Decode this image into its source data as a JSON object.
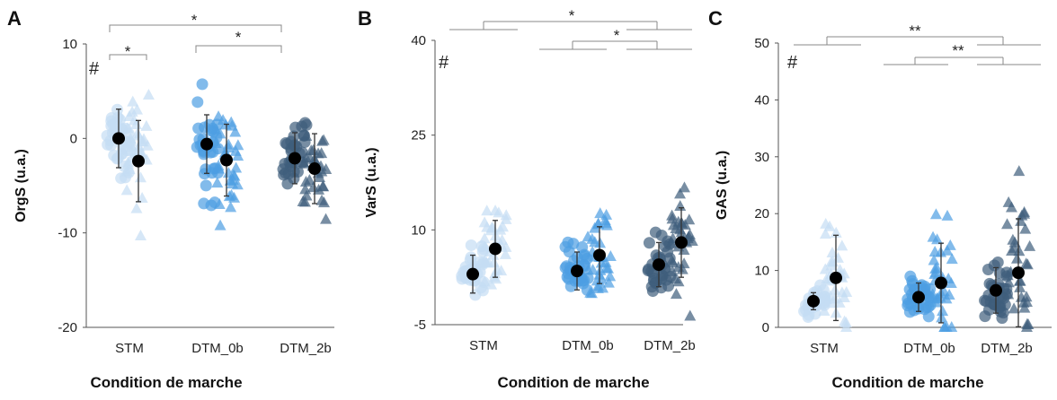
{
  "colors": {
    "STM": "#c5ddf4",
    "DTM_0b": "#4d9ee2",
    "DTM_2b": "#3f5e7c",
    "mean": "#000000"
  },
  "xlabel": "Condition de marche",
  "categories": [
    "STM",
    "DTM_0b",
    "DTM_2b"
  ],
  "chart_data": [
    {
      "type": "scatter",
      "panel_label": "A",
      "ylabel": "OrgS (u.a.)",
      "ylim": [
        -20,
        10
      ],
      "yticks": [
        "10",
        "0",
        "-10",
        "-20"
      ],
      "hash": "#",
      "categories": [
        "STM",
        "DTM_0b",
        "DTM_2b"
      ],
      "xlabel": "Condition de marche",
      "means": {
        "circles": [
          0.0,
          -0.6,
          -2.1
        ],
        "triangles": [
          -2.4,
          -2.3,
          -3.2
        ]
      },
      "sd": {
        "circles": [
          3.1,
          3.1,
          2.7
        ],
        "triangles": [
          4.3,
          3.8,
          3.7
        ]
      },
      "significance": [
        {
          "from": "STM-circle",
          "to": "STM-triangle",
          "label": "*"
        },
        {
          "from": "DTM_0b",
          "to": "DTM_2b",
          "label": "*"
        },
        {
          "from": "STM",
          "to": "DTM_2b",
          "label": "*"
        }
      ]
    },
    {
      "type": "scatter",
      "panel_label": "B",
      "ylabel": "VarS (u.a.)",
      "ylim": [
        -5,
        40
      ],
      "yticks": [
        "40",
        "25",
        "10",
        "-5"
      ],
      "hash": "#",
      "categories": [
        "STM",
        "DTM_0b",
        "DTM_2b"
      ],
      "xlabel": "Condition de marche",
      "means": {
        "circles": [
          3.0,
          3.5,
          4.5
        ],
        "triangles": [
          7.0,
          6.0,
          8.0
        ]
      },
      "sd": {
        "circles": [
          3.0,
          3.0,
          3.5
        ],
        "triangles": [
          4.5,
          4.5,
          5.5
        ]
      },
      "significance": [
        {
          "from": "STM",
          "to": "DTM_2b",
          "label": "*"
        },
        {
          "from": "DTM_0b",
          "to": "DTM_2b",
          "label": "*"
        }
      ]
    },
    {
      "type": "scatter",
      "panel_label": "C",
      "ylabel": "GAS (u.a.)",
      "ylim": [
        0,
        50
      ],
      "yticks": [
        "50",
        "40",
        "30",
        "20",
        "10",
        "0"
      ],
      "hash": "#",
      "categories": [
        "STM",
        "DTM_0b",
        "DTM_2b"
      ],
      "xlabel": "Condition de marche",
      "means": {
        "circles": [
          4.6,
          5.3,
          6.5
        ],
        "triangles": [
          8.7,
          7.8,
          9.6
        ]
      },
      "sd": {
        "circles": [
          1.5,
          2.5,
          4.0
        ],
        "triangles": [
          7.5,
          7.0,
          9.5
        ]
      },
      "significance": [
        {
          "from": "STM",
          "to": "DTM_2b",
          "label": "**"
        },
        {
          "from": "DTM_0b",
          "to": "DTM_2b",
          "label": "**"
        }
      ]
    }
  ]
}
